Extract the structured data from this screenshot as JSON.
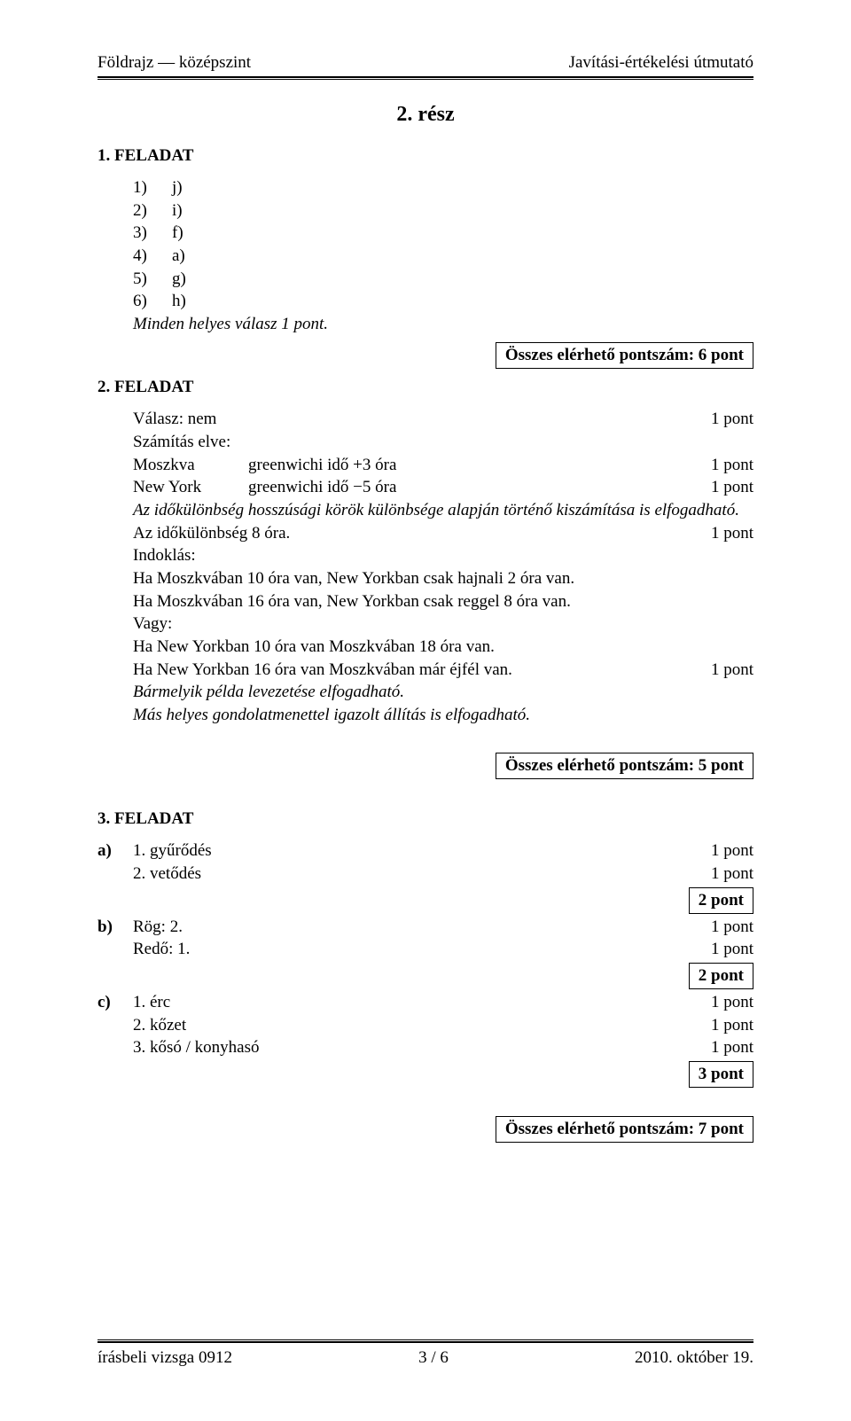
{
  "header": {
    "left": "Földrajz — középszint",
    "right": "Javítási-értékelési útmutató"
  },
  "section_title": "2. rész",
  "task1": {
    "heading": "1.  FELADAT",
    "rows": [
      {
        "n": "1)",
        "v": "j)"
      },
      {
        "n": "2)",
        "v": "i)"
      },
      {
        "n": "3)",
        "v": "f)"
      },
      {
        "n": "4)",
        "v": "a)"
      },
      {
        "n": "5)",
        "v": "g)"
      },
      {
        "n": "6)",
        "v": "h)"
      }
    ],
    "note": "Minden helyes válasz 1 pont.",
    "total": "Összes elérhető pontszám:  6 pont"
  },
  "task2": {
    "heading": "2.  FELADAT",
    "answer_label": "Válasz: nem",
    "answer_pts": "1 pont",
    "calc_label": "Számítás elve:",
    "rows": [
      {
        "c1": "Moszkva",
        "c2": "greenwichi idő +3 óra",
        "pts": "1 pont"
      },
      {
        "c1": "New York",
        "c2": "greenwichi idő −5 óra",
        "pts": "1 pont"
      }
    ],
    "explain1": "Az időkülönbség hosszúsági körök különbsége alapján történő kiszámítása is elfogadható.",
    "diff_label": "Az időkülönbség 8 óra.",
    "diff_pts": "1 pont",
    "indok_label": "Indoklás:",
    "lines": [
      "Ha Moszkvában 10 óra van, New Yorkban csak hajnali 2 óra van.",
      "Ha Moszkvában 16 óra van, New Yorkban csak reggel 8 óra van.",
      "Vagy:",
      "Ha New Yorkban 10 óra van Moszkvában 18 óra van."
    ],
    "line_pt_label": "Ha New Yorkban 16 óra van Moszkvában már éjfél van.",
    "line_pt_pts": "1 pont",
    "italic1": "Bármelyik példa levezetése elfogadható.",
    "italic2": "Más helyes gondolatmenettel igazolt állítás is elfogadható.",
    "total": "Összes elérhető pontszám:  5 pont"
  },
  "task3": {
    "heading": "3.  FELADAT",
    "a": {
      "letter": "a)",
      "items": [
        {
          "txt": "1. gyűrődés",
          "pts": "1 pont"
        },
        {
          "txt": "2. vetődés",
          "pts": "1 pont"
        }
      ],
      "subtotal": "2 pont"
    },
    "b": {
      "letter": "b)",
      "items": [
        {
          "txt": "Rög: 2.",
          "pts": "1 pont"
        },
        {
          "txt": "Redő: 1.",
          "pts": "1 pont"
        }
      ],
      "subtotal": "2 pont"
    },
    "c": {
      "letter": "c)",
      "items": [
        {
          "txt": "1. érc",
          "pts": "1 pont"
        },
        {
          "txt": "2. kőzet",
          "pts": "1 pont"
        },
        {
          "txt": "3. kősó / konyhasó",
          "pts": "1 pont"
        }
      ],
      "subtotal": "3 pont"
    },
    "total": "Összes elérhető pontszám:  7 pont"
  },
  "footer": {
    "left": "írásbeli vizsga 0912",
    "center": "3 / 6",
    "right": "2010. október 19."
  }
}
